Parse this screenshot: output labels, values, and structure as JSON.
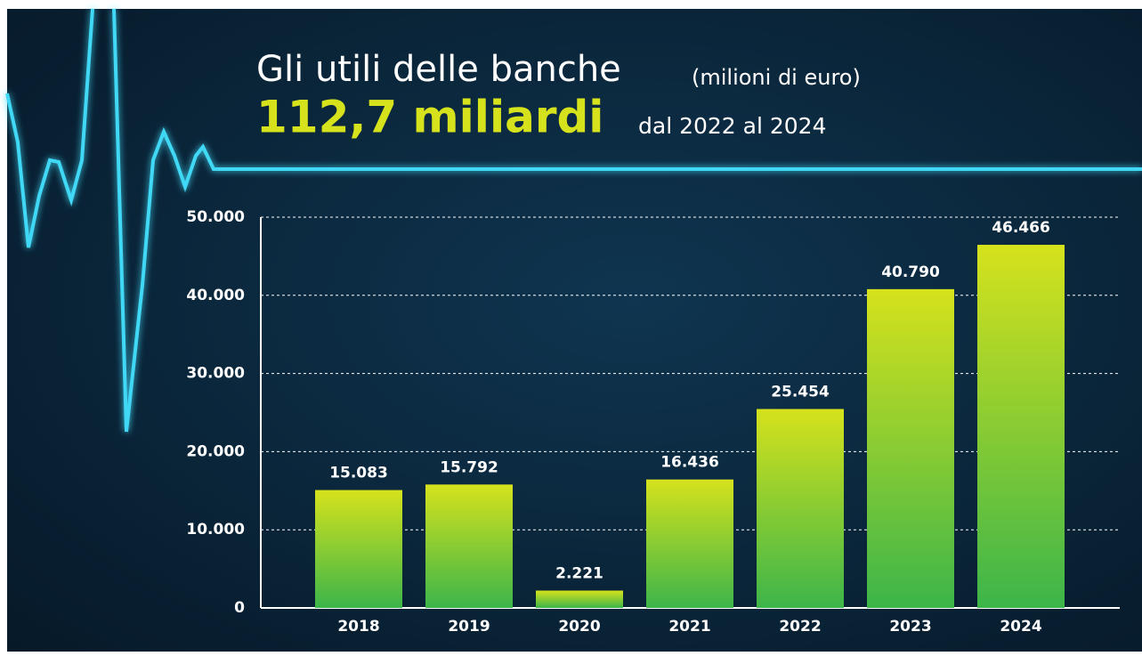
{
  "chart_data": {
    "type": "bar",
    "title": "Gli utili delle banche",
    "subtitle": "(milioni di euro)",
    "annotations": [
      "112,7 miliardi",
      "dal 2022 al 2024"
    ],
    "categories": [
      "2018",
      "2019",
      "2020",
      "2021",
      "2022",
      "2023",
      "2024"
    ],
    "values": [
      15083,
      15792,
      2221,
      16436,
      25454,
      40790,
      46466
    ],
    "value_labels": [
      "15.083",
      "15.792",
      "2.221",
      "16.436",
      "25.454",
      "40.790",
      "46.466"
    ],
    "color": [
      "#d6e21c",
      "#3cb54a"
    ],
    "ylim": [
      0,
      50000
    ],
    "yticks": [
      0,
      {
        "value": 10000,
        "label": "10.000"
      },
      {
        "value": 20000,
        "label": "20.000"
      },
      {
        "value": 30000,
        "label": "30.000"
      },
      {
        "value": 40000,
        "label": "40.000"
      },
      {
        "value": 50000,
        "label": "50.000"
      }
    ],
    "grid": true
  }
}
